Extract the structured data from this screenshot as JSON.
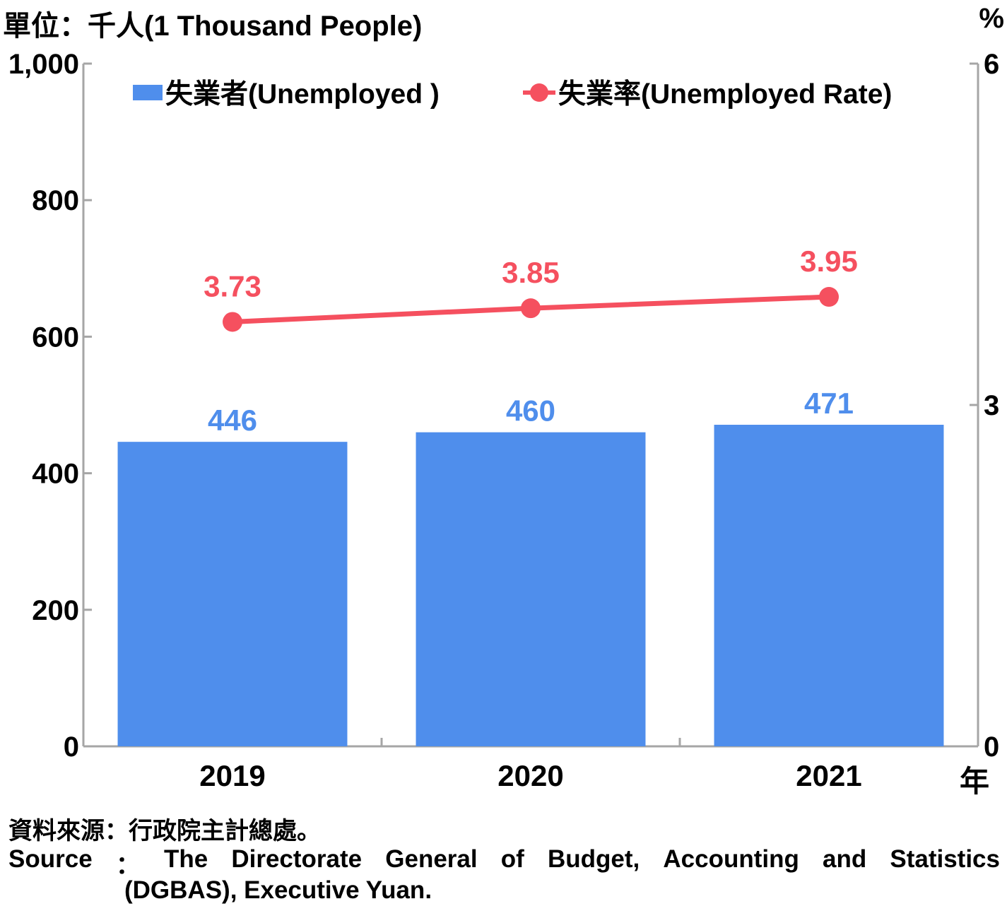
{
  "unit_label": "單位：千人(1 Thousand People)",
  "right_unit": "%",
  "x_unit": "年",
  "source_zh": "資料來源：行政院主計總處。",
  "source_en_words": [
    "Source",
    "：",
    "The",
    "Directorate",
    "General",
    "of",
    "Budget,",
    "Accounting",
    "and",
    "Statistics"
  ],
  "source_en_line2": "(DGBAS), Executive Yuan.",
  "colors": {
    "bar": "#4f8eec",
    "line": "#f5505f",
    "axis": "#a6a6a6"
  },
  "chart_data": {
    "type": "bar",
    "categories": [
      "2019",
      "2020",
      "2021"
    ],
    "series": [
      {
        "name": "失業者(Unemployed )",
        "type": "bar",
        "axis": "left",
        "values": [
          446,
          460,
          471
        ],
        "labels": [
          "446",
          "460",
          "471"
        ]
      },
      {
        "name": "失業率(Unemployed Rate)",
        "type": "line",
        "axis": "right",
        "values": [
          3.73,
          3.85,
          3.95
        ],
        "labels": [
          "3.73",
          "3.85",
          "3.95"
        ]
      }
    ],
    "y_left": {
      "range": [
        0,
        1000
      ],
      "ticks": [
        0,
        200,
        400,
        600,
        800,
        1000
      ],
      "tick_labels": [
        "0",
        "200",
        "400",
        "600",
        "800",
        "1,000"
      ]
    },
    "y_right": {
      "range": [
        0,
        6
      ],
      "ticks": [
        0,
        3,
        6
      ],
      "tick_labels": [
        "0",
        "3",
        "6"
      ]
    },
    "grid": false,
    "legend": "top"
  }
}
